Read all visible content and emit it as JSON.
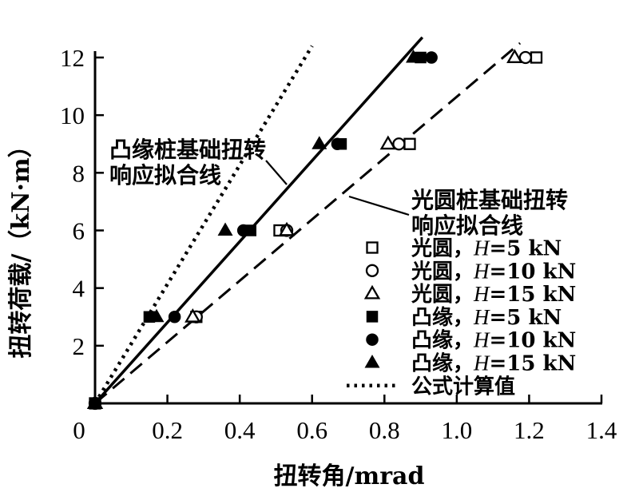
{
  "figure": {
    "background": "#ffffff",
    "ink": "#000000"
  },
  "chart_data": {
    "type": "scatter",
    "title": "",
    "xlabel": "扭转角/mrad",
    "ylabel": "扭转荷载/（kN·m）",
    "xlim": [
      0,
      1.4
    ],
    "ylim": [
      0,
      12
    ],
    "grid": false,
    "legend_position": "lower-right-inside",
    "xticks": {
      "values": [
        0,
        0.2,
        0.4,
        0.6,
        0.8,
        1.0,
        1.2,
        1.4
      ],
      "labels": [
        "0",
        "0.2",
        "0.4",
        "0.6",
        "0.8",
        "1.0",
        "1.2",
        "1.4"
      ]
    },
    "yticks": {
      "values": [
        2,
        4,
        6,
        8,
        10,
        12
      ],
      "labels": [
        "2",
        "4",
        "6",
        "8",
        "10",
        "12"
      ]
    },
    "series": [
      {
        "name": "光圆，H=5 kN",
        "marker": "square",
        "fill": "open",
        "points": [
          [
            0,
            0
          ],
          [
            0.28,
            3
          ],
          [
            0.51,
            6
          ],
          [
            0.87,
            9
          ],
          [
            1.22,
            12
          ]
        ]
      },
      {
        "name": "光圆，H=10 kN",
        "marker": "circle",
        "fill": "open",
        "points": [
          [
            0,
            0
          ],
          [
            0.28,
            3
          ],
          [
            0.53,
            6
          ],
          [
            0.84,
            9
          ],
          [
            1.19,
            12
          ]
        ]
      },
      {
        "name": "光圆，H=15 kN",
        "marker": "triangle",
        "fill": "open",
        "points": [
          [
            0,
            0
          ],
          [
            0.27,
            3
          ],
          [
            0.53,
            6
          ],
          [
            0.81,
            9
          ],
          [
            1.16,
            12
          ]
        ]
      },
      {
        "name": "凸缘，H=5 kN",
        "marker": "square",
        "fill": "solid",
        "points": [
          [
            0,
            0
          ],
          [
            0.15,
            3
          ],
          [
            0.43,
            6
          ],
          [
            0.68,
            9
          ],
          [
            0.9,
            12
          ]
        ]
      },
      {
        "name": "凸缘，H=10 kN",
        "marker": "circle",
        "fill": "solid",
        "points": [
          [
            0,
            0
          ],
          [
            0.22,
            3
          ],
          [
            0.41,
            6
          ],
          [
            0.67,
            9
          ],
          [
            0.93,
            12
          ]
        ]
      },
      {
        "name": "凸缘，H=15 kN",
        "marker": "triangle",
        "fill": "solid",
        "points": [
          [
            0,
            0
          ],
          [
            0.17,
            3
          ],
          [
            0.36,
            6
          ],
          [
            0.62,
            9
          ],
          [
            0.88,
            12
          ]
        ]
      }
    ],
    "fit_lines": [
      {
        "name": "凸缘桩基础扭转响应拟合线",
        "style": "solid",
        "x": [
          0,
          0.905
        ],
        "y": [
          0,
          12.7
        ]
      },
      {
        "name": "光圆桩基础扭转响应拟合线",
        "style": "dashed",
        "x": [
          0,
          1.175
        ],
        "y": [
          0,
          12.5
        ]
      },
      {
        "name": "公式计算值",
        "style": "dotted",
        "x": [
          0,
          0.6
        ],
        "y": [
          0,
          12.4
        ]
      }
    ],
    "annotations": {
      "flange": {
        "line1": "凸缘桩基础扭转",
        "line2": "响应拟合线"
      },
      "smooth": {
        "line1": "光圆桩基础扭转",
        "line2": "响应拟合线"
      }
    },
    "legend": {
      "items": [
        {
          "marker": "square",
          "fill": "open",
          "prefix": "光圆，",
          "italic": "H",
          "suffix": "=5 kN"
        },
        {
          "marker": "circle",
          "fill": "open",
          "prefix": "光圆，",
          "italic": "H",
          "suffix": "=10 kN"
        },
        {
          "marker": "triangle",
          "fill": "open",
          "prefix": "光圆，",
          "italic": "H",
          "suffix": "=15 kN"
        },
        {
          "marker": "square",
          "fill": "solid",
          "prefix": "凸缘，",
          "italic": "H",
          "suffix": "=5 kN"
        },
        {
          "marker": "circle",
          "fill": "solid",
          "prefix": "凸缘，",
          "italic": "H",
          "suffix": "=10 kN"
        },
        {
          "marker": "triangle",
          "fill": "solid",
          "prefix": "凸缘，",
          "italic": "H",
          "suffix": "=15 kN"
        },
        {
          "marker": "dotted-line",
          "fill": "line",
          "prefix": "公式计算值",
          "italic": "",
          "suffix": ""
        }
      ]
    }
  }
}
